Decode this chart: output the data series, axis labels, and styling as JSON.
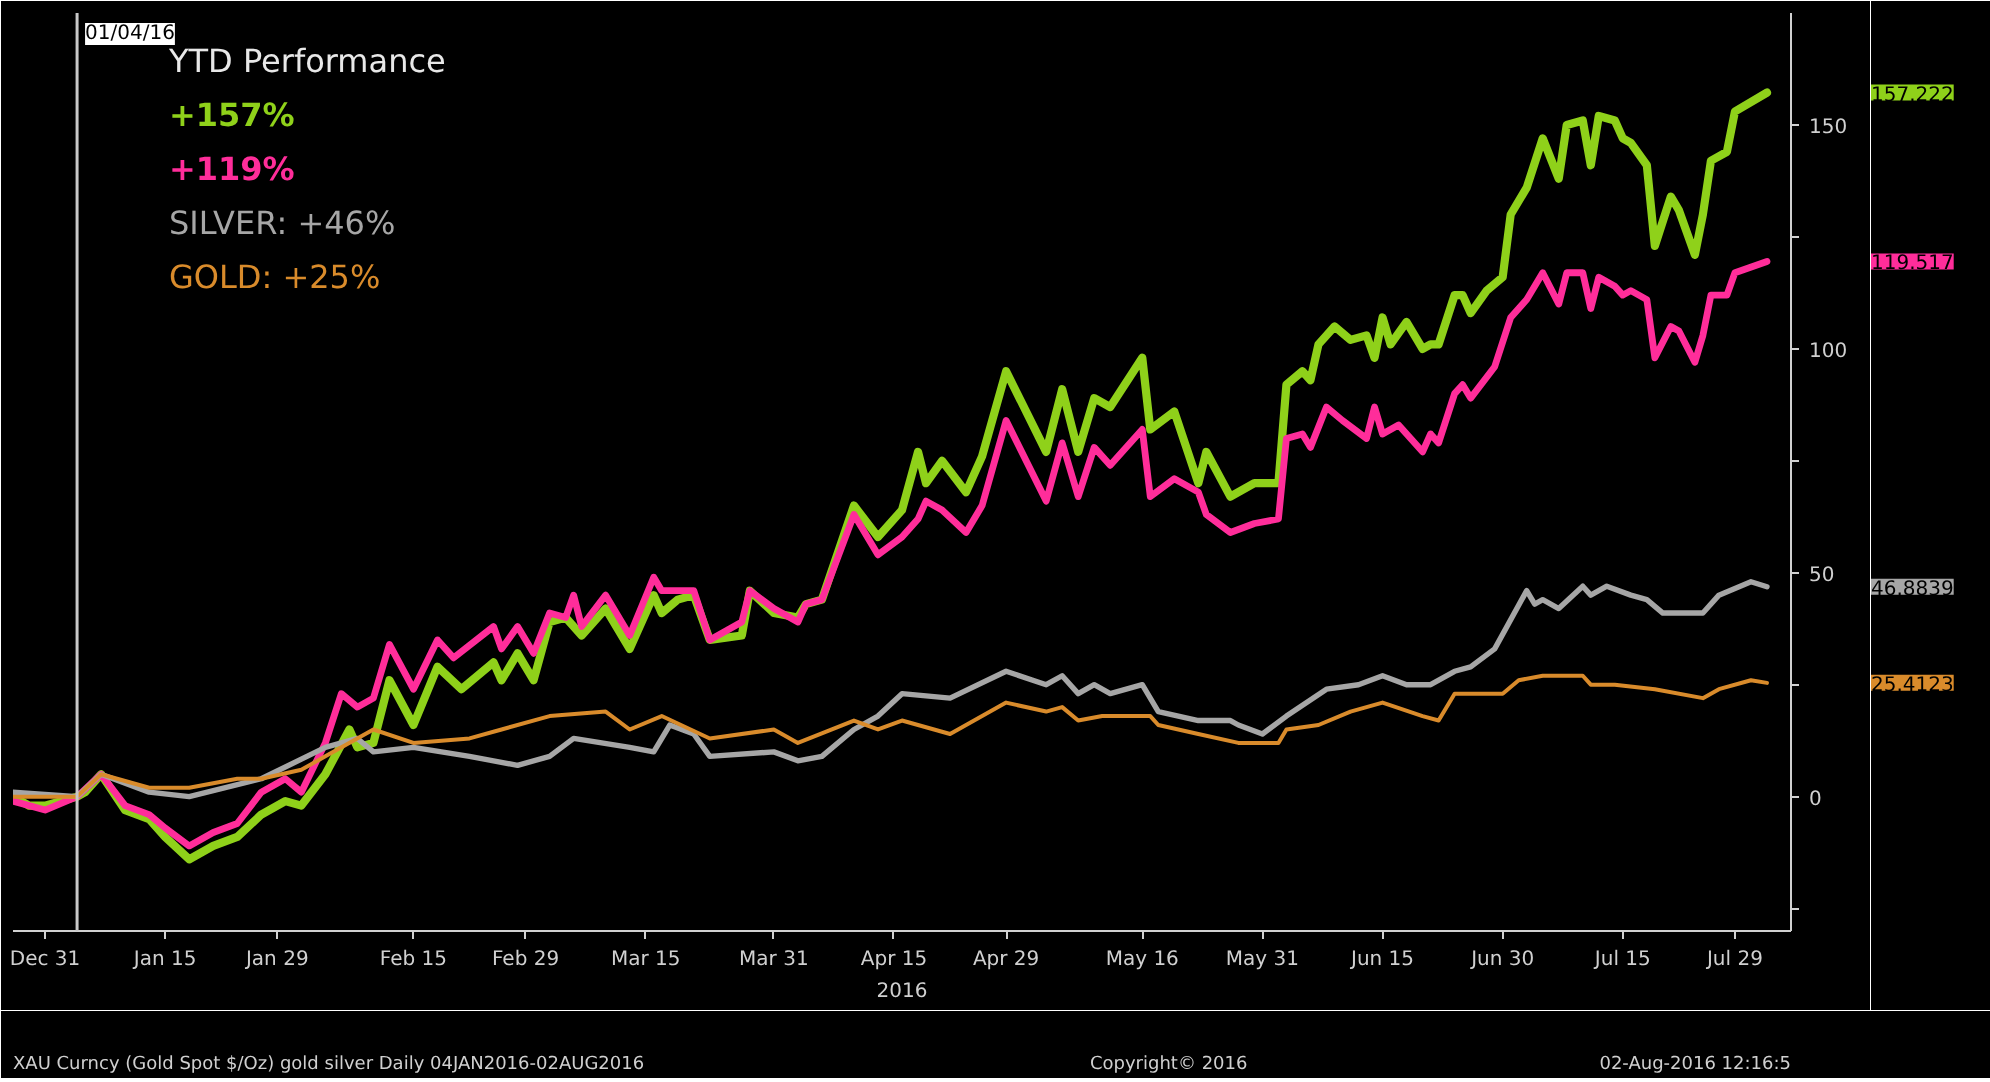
{
  "chart_data": {
    "type": "line",
    "legend_title": "YTD Performance",
    "xlabel": "2016",
    "legend": "top left",
    "grid": false,
    "marker": "none",
    "line_style": "solid",
    "xlim": [
      "2015-12-27",
      "2016-08-05"
    ],
    "xticks": [
      {
        "value": "2015-12-31",
        "label": "Dec 31"
      },
      {
        "value": "2016-01-15",
        "label": "Jan 15"
      },
      {
        "value": "2016-01-29",
        "label": "Jan 29"
      },
      {
        "value": "2016-02-15",
        "label": "Feb 15"
      },
      {
        "value": "2016-02-29",
        "label": "Feb 29"
      },
      {
        "value": "2016-03-15",
        "label": "Mar 15"
      },
      {
        "value": "2016-03-31",
        "label": "Mar 31"
      },
      {
        "value": "2016-04-15",
        "label": "Apr 15"
      },
      {
        "value": "2016-04-29",
        "label": "Apr 29"
      },
      {
        "value": "2016-05-16",
        "label": "May 16"
      },
      {
        "value": "2016-05-31",
        "label": "May 31"
      },
      {
        "value": "2016-06-15",
        "label": "Jun 15"
      },
      {
        "value": "2016-06-30",
        "label": "Jun 30"
      },
      {
        "value": "2016-07-15",
        "label": "Jul 15"
      },
      {
        "value": "2016-07-29",
        "label": "Jul 29"
      }
    ],
    "ylim": [
      -30,
      175
    ],
    "yticks": [
      {
        "value": -25,
        "label": null
      },
      0,
      {
        "value": 25,
        "label": null
      },
      50,
      {
        "value": 75,
        "label": null
      },
      100,
      {
        "value": 125,
        "label": null
      },
      150
    ],
    "ref_lines": [
      {
        "axis": "x",
        "value": "2016-01-04",
        "label": "01/04/16",
        "color": "#c8c8c8"
      }
    ],
    "series": [
      {
        "name": "+157%",
        "color": "#8fd11a",
        "x": [
          "2015-12-27",
          "2015-12-29",
          "2015-12-31",
          "2016-01-04",
          "2016-01-05",
          "2016-01-07",
          "2016-01-10",
          "2016-01-13",
          "2016-01-15",
          "2016-01-18",
          "2016-01-21",
          "2016-01-24",
          "2016-01-27",
          "2016-01-30",
          "2016-02-01",
          "2016-02-04",
          "2016-02-07",
          "2016-02-08",
          "2016-02-10",
          "2016-02-12",
          "2016-02-15",
          "2016-02-18",
          "2016-02-21",
          "2016-02-25",
          "2016-02-26",
          "2016-02-28",
          "2016-03-01",
          "2016-03-03",
          "2016-03-05",
          "2016-03-07",
          "2016-03-10",
          "2016-03-13",
          "2016-03-16",
          "2016-03-17",
          "2016-03-19",
          "2016-03-21",
          "2016-03-23",
          "2016-03-27",
          "2016-03-28",
          "2016-03-31",
          "2016-04-03",
          "2016-04-04",
          "2016-04-06",
          "2016-04-10",
          "2016-04-13",
          "2016-04-16",
          "2016-04-18",
          "2016-04-19",
          "2016-04-21",
          "2016-04-24",
          "2016-04-26",
          "2016-04-29",
          "2016-05-04",
          "2016-05-06",
          "2016-05-08",
          "2016-05-10",
          "2016-05-12",
          "2016-05-16",
          "2016-05-17",
          "2016-05-20",
          "2016-05-23",
          "2016-05-24",
          "2016-05-27",
          "2016-05-30",
          "2016-06-02",
          "2016-06-03",
          "2016-06-05",
          "2016-06-06",
          "2016-06-07",
          "2016-06-09",
          "2016-06-11",
          "2016-06-13",
          "2016-06-14",
          "2016-06-15",
          "2016-06-16",
          "2016-06-18",
          "2016-06-20",
          "2016-06-21",
          "2016-06-22",
          "2016-06-24",
          "2016-06-25",
          "2016-06-26",
          "2016-06-28",
          "2016-06-30",
          "2016-07-01",
          "2016-07-03",
          "2016-07-05",
          "2016-07-07",
          "2016-07-08",
          "2016-07-10",
          "2016-07-11",
          "2016-07-12",
          "2016-07-14",
          "2016-07-15",
          "2016-07-16",
          "2016-07-18",
          "2016-07-19",
          "2016-07-21",
          "2016-07-22",
          "2016-07-24",
          "2016-07-25",
          "2016-07-26",
          "2016-07-28",
          "2016-07-29",
          "2016-08-02"
        ],
        "values": [
          0,
          -2,
          -2,
          0,
          1,
          5,
          -3,
          -5,
          -9,
          -14,
          -11,
          -9,
          -4,
          -1,
          -2,
          5,
          15,
          11,
          12,
          26,
          16,
          29,
          24,
          30,
          26,
          32,
          26,
          39,
          40,
          36,
          42,
          33,
          45,
          41,
          44,
          45,
          35,
          36,
          46,
          41,
          40,
          43,
          44,
          65,
          58,
          64,
          77,
          70,
          75,
          68,
          76,
          95,
          77,
          91,
          77,
          89,
          87,
          98,
          82,
          86,
          70,
          77,
          67,
          70,
          70,
          92,
          95,
          93,
          101,
          105,
          102,
          103,
          98,
          107,
          101,
          106,
          100,
          101,
          101,
          112,
          112,
          108,
          113,
          116,
          130,
          136,
          147,
          138,
          150,
          151,
          141,
          152,
          151,
          147,
          146,
          141,
          123,
          134,
          131,
          121,
          130,
          142,
          144,
          153,
          157.222
        ]
      },
      {
        "name": "+119%",
        "color": "#ff2d9a",
        "x": [
          "2015-12-27",
          "2015-12-31",
          "2016-01-04",
          "2016-01-07",
          "2016-01-10",
          "2016-01-13",
          "2016-01-15",
          "2016-01-18",
          "2016-01-21",
          "2016-01-24",
          "2016-01-27",
          "2016-01-30",
          "2016-02-01",
          "2016-02-04",
          "2016-02-06",
          "2016-02-08",
          "2016-02-10",
          "2016-02-12",
          "2016-02-15",
          "2016-02-18",
          "2016-02-20",
          "2016-02-25",
          "2016-02-26",
          "2016-02-28",
          "2016-03-01",
          "2016-03-03",
          "2016-03-05",
          "2016-03-06",
          "2016-03-07",
          "2016-03-10",
          "2016-03-13",
          "2016-03-16",
          "2016-03-17",
          "2016-03-19",
          "2016-03-21",
          "2016-03-23",
          "2016-03-27",
          "2016-03-28",
          "2016-03-31",
          "2016-04-03",
          "2016-04-04",
          "2016-04-06",
          "2016-04-10",
          "2016-04-13",
          "2016-04-16",
          "2016-04-18",
          "2016-04-19",
          "2016-04-21",
          "2016-04-24",
          "2016-04-26",
          "2016-04-29",
          "2016-05-04",
          "2016-05-06",
          "2016-05-08",
          "2016-05-10",
          "2016-05-12",
          "2016-05-16",
          "2016-05-17",
          "2016-05-20",
          "2016-05-23",
          "2016-05-24",
          "2016-05-27",
          "2016-05-30",
          "2016-06-02",
          "2016-06-03",
          "2016-06-05",
          "2016-06-06",
          "2016-06-08",
          "2016-06-10",
          "2016-06-13",
          "2016-06-14",
          "2016-06-15",
          "2016-06-17",
          "2016-06-20",
          "2016-06-21",
          "2016-06-22",
          "2016-06-24",
          "2016-06-25",
          "2016-06-26",
          "2016-06-29",
          "2016-07-01",
          "2016-07-03",
          "2016-07-05",
          "2016-07-07",
          "2016-07-08",
          "2016-07-10",
          "2016-07-11",
          "2016-07-12",
          "2016-07-14",
          "2016-07-15",
          "2016-07-16",
          "2016-07-18",
          "2016-07-19",
          "2016-07-21",
          "2016-07-22",
          "2016-07-24",
          "2016-07-25",
          "2016-07-26",
          "2016-07-28",
          "2016-07-29",
          "2016-08-02"
        ],
        "values": [
          -1,
          -3,
          0,
          5,
          -2,
          -4,
          -7,
          -11,
          -8,
          -6,
          1,
          4,
          1,
          12,
          23,
          20,
          22,
          34,
          24,
          35,
          31,
          38,
          33,
          38,
          32,
          41,
          40,
          45,
          38,
          45,
          36,
          49,
          46,
          46,
          46,
          35,
          39,
          46,
          42,
          39,
          43,
          44,
          63,
          54,
          58,
          62,
          66,
          64,
          59,
          65,
          84,
          66,
          79,
          67,
          78,
          74,
          82,
          67,
          71,
          68,
          63,
          59,
          61,
          62,
          80,
          81,
          78,
          87,
          84,
          80,
          87,
          81,
          83,
          77,
          81,
          79,
          90,
          92,
          89,
          96,
          107,
          111,
          117,
          110,
          117,
          117,
          109,
          116,
          114,
          112,
          113,
          111,
          98,
          105,
          104,
          97,
          103,
          112,
          112,
          117,
          119.517
        ]
      },
      {
        "name": "SILVER: +46%",
        "color": "#a6a6a6",
        "x": [
          "2015-12-27",
          "2016-01-04",
          "2016-01-07",
          "2016-01-13",
          "2016-01-18",
          "2016-01-27",
          "2016-02-04",
          "2016-02-08",
          "2016-02-10",
          "2016-02-15",
          "2016-02-22",
          "2016-02-28",
          "2016-03-03",
          "2016-03-06",
          "2016-03-13",
          "2016-03-16",
          "2016-03-18",
          "2016-03-21",
          "2016-03-23",
          "2016-03-31",
          "2016-04-03",
          "2016-04-06",
          "2016-04-10",
          "2016-04-13",
          "2016-04-16",
          "2016-04-22",
          "2016-04-29",
          "2016-05-04",
          "2016-05-06",
          "2016-05-08",
          "2016-05-10",
          "2016-05-12",
          "2016-05-16",
          "2016-05-18",
          "2016-05-23",
          "2016-05-27",
          "2016-05-28",
          "2016-05-31",
          "2016-06-03",
          "2016-06-08",
          "2016-06-12",
          "2016-06-15",
          "2016-06-18",
          "2016-06-21",
          "2016-06-24",
          "2016-06-26",
          "2016-06-29",
          "2016-07-03",
          "2016-07-04",
          "2016-07-05",
          "2016-07-07",
          "2016-07-10",
          "2016-07-11",
          "2016-07-13",
          "2016-07-16",
          "2016-07-18",
          "2016-07-20",
          "2016-07-25",
          "2016-07-27",
          "2016-07-31",
          "2016-08-02"
        ],
        "values": [
          1,
          0,
          5,
          1,
          0,
          4,
          11,
          13,
          10,
          11,
          9,
          7,
          9,
          13,
          11,
          10,
          16,
          14,
          9,
          10,
          8,
          9,
          15,
          18,
          23,
          22,
          28,
          25,
          27,
          23,
          25,
          23,
          25,
          19,
          17,
          17,
          16,
          14,
          18,
          24,
          25,
          27,
          25,
          25,
          28,
          29,
          33,
          46,
          43,
          44,
          42,
          47,
          45,
          47,
          45,
          44,
          41,
          41,
          45,
          48,
          46.8839
        ]
      },
      {
        "name": "GOLD: +25%",
        "color": "#d98b2b",
        "x": [
          "2015-12-27",
          "2016-01-04",
          "2016-01-07",
          "2016-01-13",
          "2016-01-18",
          "2016-01-24",
          "2016-01-27",
          "2016-02-01",
          "2016-02-04",
          "2016-02-10",
          "2016-02-15",
          "2016-02-22",
          "2016-02-26",
          "2016-03-03",
          "2016-03-10",
          "2016-03-13",
          "2016-03-17",
          "2016-03-23",
          "2016-03-31",
          "2016-04-03",
          "2016-04-10",
          "2016-04-13",
          "2016-04-16",
          "2016-04-22",
          "2016-04-29",
          "2016-05-04",
          "2016-05-06",
          "2016-05-08",
          "2016-05-11",
          "2016-05-17",
          "2016-05-18",
          "2016-05-23",
          "2016-05-28",
          "2016-06-02",
          "2016-06-03",
          "2016-06-07",
          "2016-06-11",
          "2016-06-15",
          "2016-06-20",
          "2016-06-22",
          "2016-06-24",
          "2016-06-30",
          "2016-07-02",
          "2016-07-05",
          "2016-07-10",
          "2016-07-11",
          "2016-07-14",
          "2016-07-19",
          "2016-07-25",
          "2016-07-27",
          "2016-07-31",
          "2016-08-02"
        ],
        "values": [
          0,
          0,
          5,
          2,
          2,
          4,
          4,
          6,
          9,
          15,
          12,
          13,
          15,
          18,
          19,
          15,
          18,
          13,
          15,
          12,
          17,
          15,
          17,
          14,
          21,
          19,
          20,
          17,
          18,
          18,
          16,
          14,
          12,
          12,
          15,
          16,
          19,
          21,
          18,
          17,
          23,
          23,
          26,
          27,
          27,
          25,
          25,
          24,
          22,
          24,
          26,
          25.4123
        ]
      }
    ],
    "annotations": [
      "157.222",
      "119.517",
      "46.8839",
      "25.4123",
      "XAU Curncy (Gold Spot $/Oz) gold silver Daily 04JAN2016-02AUG2016",
      "Copyright© 2016",
      "02-Aug-2016 12:16:5"
    ]
  }
}
